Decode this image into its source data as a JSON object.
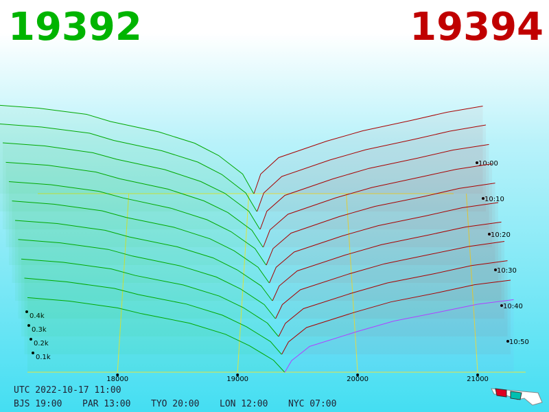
{
  "chart_data": {
    "type": "depth3d",
    "bid_price": "19392",
    "ask_price": "19394",
    "utc_label": "UTC 2022-10-17 11:00",
    "clocks": [
      "BJS 19:00",
      "PAR 13:00",
      "TYO 20:00",
      "LON 12:00",
      "NYC 07:00"
    ],
    "bid_color": "#00a800",
    "ask_color": "#a80000",
    "latest_ask_color": "#b040ff",
    "grid_color": "#e8e840",
    "xlim": [
      17250,
      21400
    ],
    "xticks": [
      18000,
      19000,
      20000,
      21000
    ],
    "yticks": [
      {
        "value": 100,
        "label": "0.1k"
      },
      {
        "value": 200,
        "label": "0.2k"
      },
      {
        "value": 300,
        "label": "0.3k"
      },
      {
        "value": 400,
        "label": "0.4k"
      }
    ],
    "zticks": [
      "10:00",
      "10:10",
      "10:20",
      "10:30",
      "10:40",
      "10:50"
    ],
    "bid_prices": [
      17250,
      17600,
      18000,
      18200,
      18600,
      18900,
      19100,
      19300,
      19392
    ],
    "ask_prices": [
      19394,
      19450,
      19600,
      20000,
      20300,
      20700,
      21000,
      21300
    ],
    "snapshots": [
      {
        "time": "10:00",
        "bids": [
          430,
          415,
          385,
          350,
          300,
          245,
          185,
          95,
          0
        ],
        "asks": [
          0,
          95,
          175,
          255,
          305,
          355,
          395,
          425
        ]
      },
      {
        "time": "10:05",
        "bids": [
          425,
          410,
          380,
          345,
          295,
          240,
          180,
          90,
          0
        ],
        "asks": [
          0,
          90,
          170,
          250,
          300,
          350,
          390,
          420
        ]
      },
      {
        "time": "10:10",
        "bids": [
          420,
          405,
          372,
          340,
          290,
          232,
          175,
          88,
          0
        ],
        "asks": [
          0,
          88,
          165,
          245,
          296,
          345,
          385,
          412
        ]
      },
      {
        "time": "10:15",
        "bids": [
          412,
          398,
          365,
          332,
          282,
          225,
          168,
          82,
          0
        ],
        "asks": [
          0,
          84,
          160,
          240,
          290,
          340,
          378,
          405
        ]
      },
      {
        "time": "10:20",
        "bids": [
          405,
          390,
          358,
          326,
          276,
          220,
          162,
          80,
          0
        ],
        "asks": [
          0,
          80,
          155,
          235,
          285,
          332,
          372,
          398
        ]
      },
      {
        "time": "10:25",
        "bids": [
          398,
          382,
          350,
          318,
          270,
          214,
          156,
          76,
          0
        ],
        "asks": [
          0,
          76,
          150,
          228,
          278,
          326,
          365,
          390
        ]
      },
      {
        "time": "10:30",
        "bids": [
          390,
          375,
          342,
          310,
          262,
          208,
          150,
          72,
          0
        ],
        "asks": [
          0,
          72,
          145,
          222,
          272,
          320,
          358,
          382
        ]
      },
      {
        "time": "10:35",
        "bids": [
          384,
          368,
          336,
          304,
          256,
          202,
          145,
          68,
          0
        ],
        "asks": [
          0,
          68,
          140,
          216,
          266,
          314,
          350,
          375
        ]
      },
      {
        "time": "10:40",
        "bids": [
          376,
          360,
          328,
          296,
          250,
          196,
          140,
          65,
          0
        ],
        "asks": [
          0,
          64,
          135,
          210,
          260,
          306,
          344,
          368
        ]
      },
      {
        "time": "10:45",
        "bids": [
          370,
          352,
          320,
          290,
          244,
          190,
          134,
          62,
          0
        ],
        "asks": [
          0,
          60,
          130,
          204,
          254,
          300,
          338,
          360
        ]
      },
      {
        "time": "10:50",
        "bids": [
          362,
          345,
          312,
          284,
          238,
          184,
          128,
          58,
          0
        ],
        "asks": [
          0,
          56,
          125,
          198,
          248,
          294,
          330,
          352
        ]
      }
    ]
  }
}
